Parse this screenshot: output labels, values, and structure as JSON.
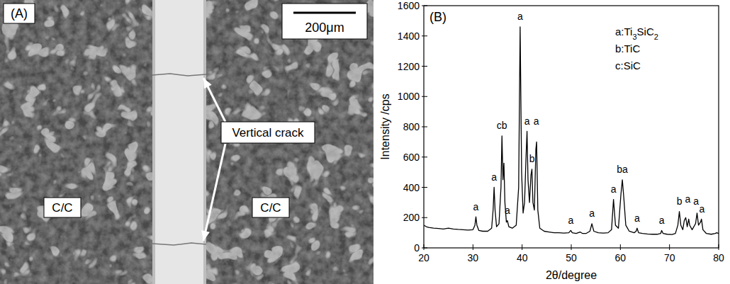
{
  "micrograph": {
    "panel_label": "(A)",
    "scale_bar": "200μm",
    "crack_label": "Vertical crack",
    "region_labels": [
      "C/C",
      "C/C"
    ]
  },
  "chart_data": {
    "type": "line",
    "title": "(B)",
    "x_label": "2θ/degree",
    "y_label": "Intensity /cps",
    "color": "#000000",
    "grid": false,
    "xlim": [
      20,
      80
    ],
    "xticks": [
      20,
      30,
      40,
      50,
      60,
      70,
      80
    ],
    "ylim": [
      0,
      1600
    ],
    "yticks": [
      0,
      200,
      400,
      600,
      800,
      1000,
      1200,
      1400,
      1600
    ],
    "phase_key": [
      "a:Ti3SiC2",
      "b:TiC",
      "c:SiC"
    ],
    "x": [
      20,
      20.5,
      21,
      22,
      23,
      24,
      25,
      26,
      27,
      28,
      29,
      30,
      30.4,
      30.6,
      30.8,
      31.2,
      32,
      33,
      33.8,
      34.1,
      34.3,
      34.5,
      34.8,
      35.3,
      35.7,
      35.9,
      36.1,
      36.3,
      36.5,
      36.8,
      37.0,
      37.3,
      38,
      38.8,
      39.3,
      39.6,
      39.9,
      40.2,
      40.5,
      40.8,
      41.0,
      41.2,
      41.5,
      41.8,
      42.0,
      42.2,
      42.5,
      42.8,
      42.95,
      43.2,
      43.6,
      44.5,
      45.5,
      46.5,
      47.5,
      48.5,
      49.5,
      49.9,
      50.2,
      51,
      51.8,
      52.3,
      53,
      53.8,
      54.2,
      54.6,
      55.5,
      56.5,
      57.5,
      58.2,
      58.6,
      59.0,
      59.6,
      60.1,
      60.4,
      60.7,
      61.1,
      61.8,
      62.8,
      63.2,
      63.4,
      63.7,
      64.5,
      65.5,
      66.5,
      67.5,
      68.2,
      68.4,
      68.7,
      69.5,
      70.5,
      71.2,
      71.7,
      72.0,
      72.3,
      72.7,
      73.0,
      73.3,
      73.6,
      73.9,
      74.1,
      74.6,
      75.3,
      75.6,
      75.9,
      76.3,
      76.5,
      76.8,
      77.5,
      78.5,
      79.3,
      79.6,
      80
    ],
    "values": [
      150,
      140,
      135,
      130,
      128,
      125,
      130,
      125,
      122,
      120,
      118,
      120,
      150,
      205,
      150,
      115,
      110,
      110,
      130,
      250,
      400,
      250,
      140,
      160,
      400,
      740,
      450,
      560,
      300,
      170,
      180,
      140,
      130,
      150,
      400,
      1460,
      500,
      230,
      300,
      600,
      770,
      450,
      300,
      480,
      520,
      300,
      250,
      650,
      700,
      250,
      130,
      110,
      105,
      100,
      100,
      98,
      100,
      115,
      100,
      95,
      105,
      95,
      95,
      110,
      160,
      110,
      100,
      98,
      100,
      120,
      320,
      150,
      130,
      350,
      450,
      330,
      150,
      110,
      100,
      110,
      130,
      100,
      95,
      92,
      90,
      90,
      95,
      115,
      95,
      90,
      88,
      95,
      150,
      240,
      150,
      120,
      180,
      200,
      140,
      190,
      150,
      120,
      160,
      230,
      150,
      170,
      190,
      120,
      95,
      90,
      95,
      100,
      95
    ],
    "annotations": [
      {
        "text": "a",
        "x": 30.6,
        "y": 250
      },
      {
        "text": "a",
        "x": 34.3,
        "y": 445
      },
      {
        "text": "cb",
        "x": 35.9,
        "y": 785
      },
      {
        "text": "a",
        "x": 37.0,
        "y": 225
      },
      {
        "text": "a",
        "x": 39.6,
        "y": 1505
      },
      {
        "text": "a",
        "x": 41.0,
        "y": 815
      },
      {
        "text": "a",
        "x": 42.9,
        "y": 815
      },
      {
        "text": "b",
        "x": 42.0,
        "y": 565
      },
      {
        "text": "a",
        "x": 49.9,
        "y": 160
      },
      {
        "text": "a",
        "x": 54.2,
        "y": 205
      },
      {
        "text": "a",
        "x": 58.6,
        "y": 365
      },
      {
        "text": "ba",
        "x": 60.4,
        "y": 495
      },
      {
        "text": "a",
        "x": 63.4,
        "y": 175
      },
      {
        "text": "a",
        "x": 68.4,
        "y": 160
      },
      {
        "text": "b",
        "x": 72.0,
        "y": 285
      },
      {
        "text": "a",
        "x": 73.7,
        "y": 300
      },
      {
        "text": "a",
        "x": 75.4,
        "y": 285
      },
      {
        "text": "a",
        "x": 76.6,
        "y": 235
      }
    ]
  }
}
